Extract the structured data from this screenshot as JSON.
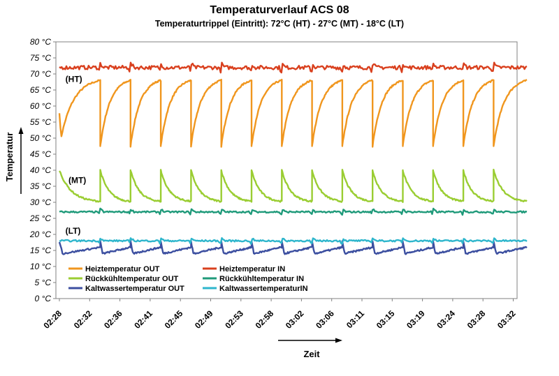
{
  "chart_data": {
    "type": "line",
    "title": "Temperaturverlauf ACS 08",
    "subtitle": "Temperaturtrippel (Eintritt): 72°C (HT) - 27°C (MT) - 18°C (LT)",
    "xlabel": "Zeit",
    "ylabel": "Temperatur",
    "yunit": "°C",
    "ylim": [
      0,
      80
    ],
    "ystep": 5,
    "grid": false,
    "legend_position": "bottom-left",
    "categories": [
      "02:28",
      "02:32",
      "02:36",
      "02:41",
      "02:45",
      "02:49",
      "02:53",
      "02:58",
      "03:02",
      "03:06",
      "03:11",
      "03:15",
      "03:19",
      "03:24",
      "03:28",
      "03:32"
    ],
    "cycle_starts": [
      0.0,
      1.35,
      2.35,
      3.35,
      4.35,
      5.35,
      6.35,
      7.35,
      8.35,
      9.35,
      10.35,
      11.35,
      12.35,
      13.35,
      14.35
    ],
    "x_end": 15.45,
    "annotations": [
      {
        "text": "(HT)",
        "x": 0.2,
        "y": 67.5
      },
      {
        "text": "(MT)",
        "x": 0.3,
        "y": 36.0
      },
      {
        "text": "(LT)",
        "x": 0.2,
        "y": 20.2
      }
    ],
    "series": [
      {
        "name": "Heiztemperatur OUT",
        "color": "#F0961E",
        "cycle": {
          "min": 47.5,
          "max": 68.0
        }
      },
      {
        "name": "Heiztemperatur IN",
        "color": "#D9401E",
        "base": 72.0
      },
      {
        "name": "Rückkühltemperatur OUT",
        "color": "#9ACD32",
        "cycle": {
          "min": 30.0,
          "max": 40.0
        }
      },
      {
        "name": "Rückkühltemperatur IN",
        "color": "#1F9A7A",
        "base": 27.0
      },
      {
        "name": "Kaltwassertemperatur OUT",
        "color": "#3C4FA0",
        "cycle": {
          "min": 14.0,
          "max": 17.8
        }
      },
      {
        "name": "KaltwassertemperaturIN",
        "color": "#2EB6CC",
        "base": 18.0
      }
    ]
  }
}
